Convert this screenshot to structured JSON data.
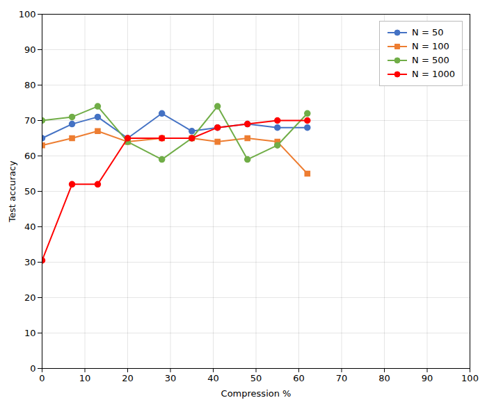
{
  "chart_data": {
    "type": "line",
    "xlabel": "Compression %",
    "ylabel": "Test accuracy",
    "x": [
      0,
      7,
      13,
      20,
      28,
      35,
      41,
      48,
      55,
      62
    ],
    "series": [
      {
        "name": "N = 50",
        "color": "#4472c4",
        "marker": "circle",
        "values": [
          65,
          69,
          71,
          65,
          72,
          67,
          68,
          69,
          68,
          68
        ]
      },
      {
        "name": "N = 100",
        "color": "#ed7d31",
        "marker": "square",
        "values": [
          63,
          65,
          67,
          64,
          65,
          65,
          64,
          65,
          64,
          55
        ]
      },
      {
        "name": "N = 500",
        "color": "#70ad47",
        "marker": "circle",
        "values": [
          70,
          71,
          74,
          64,
          59,
          65,
          74,
          59,
          63,
          72
        ]
      },
      {
        "name": "N = 1000",
        "color": "#ff0000",
        "marker": "circle",
        "values": [
          30.5,
          52,
          52,
          65,
          65,
          65,
          68,
          69,
          70,
          70
        ]
      }
    ],
    "xlim": [
      0,
      100
    ],
    "ylim": [
      0,
      100
    ],
    "xticks": [
      0,
      10,
      20,
      30,
      40,
      50,
      60,
      70,
      80,
      90,
      100
    ],
    "yticks": [
      0,
      10,
      20,
      30,
      40,
      50,
      60,
      70,
      80,
      90,
      100
    ],
    "grid": true,
    "legend": "upper right"
  }
}
